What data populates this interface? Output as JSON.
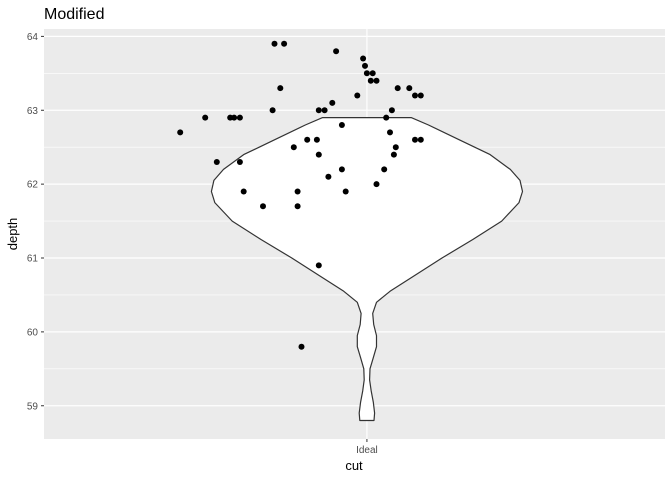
{
  "chart_data": {
    "type": "scatter",
    "title": "Modified",
    "xlabel": "cut",
    "ylabel": "depth",
    "categories": [
      "Ideal"
    ],
    "ylim": [
      58.55,
      64.1
    ],
    "y_ticks": [
      59,
      60,
      61,
      62,
      63,
      64
    ],
    "y_tick_labels": [
      "59",
      "60",
      "61",
      "62",
      "63",
      "64"
    ],
    "grid": true,
    "legend": "none",
    "violin": {
      "category": "Ideal",
      "y_min": 58.8,
      "y_max": 62.9,
      "half_width_profile": [
        {
          "y": 58.8,
          "w": 0.037
        },
        {
          "y": 58.9,
          "w": 0.04
        },
        {
          "y": 59.05,
          "w": 0.033
        },
        {
          "y": 59.2,
          "w": 0.022
        },
        {
          "y": 59.35,
          "w": 0.014
        },
        {
          "y": 59.5,
          "w": 0.016
        },
        {
          "y": 59.65,
          "w": 0.033
        },
        {
          "y": 59.8,
          "w": 0.05
        },
        {
          "y": 59.95,
          "w": 0.05
        },
        {
          "y": 60.1,
          "w": 0.035
        },
        {
          "y": 60.25,
          "w": 0.03
        },
        {
          "y": 60.4,
          "w": 0.05
        },
        {
          "y": 60.55,
          "w": 0.12
        },
        {
          "y": 60.75,
          "w": 0.24
        },
        {
          "y": 61.0,
          "w": 0.39
        },
        {
          "y": 61.25,
          "w": 0.55
        },
        {
          "y": 61.5,
          "w": 0.7
        },
        {
          "y": 61.75,
          "w": 0.79
        },
        {
          "y": 61.9,
          "w": 0.808
        },
        {
          "y": 62.05,
          "w": 0.795
        },
        {
          "y": 62.2,
          "w": 0.745
        },
        {
          "y": 62.4,
          "w": 0.64
        },
        {
          "y": 62.6,
          "w": 0.48
        },
        {
          "y": 62.8,
          "w": 0.32
        },
        {
          "y": 62.9,
          "w": 0.23
        }
      ]
    },
    "points": [
      {
        "x": -0.97,
        "y": 62.7
      },
      {
        "x": -0.84,
        "y": 62.9
      },
      {
        "x": -0.78,
        "y": 62.3
      },
      {
        "x": -0.71,
        "y": 62.9
      },
      {
        "x": -0.69,
        "y": 62.9
      },
      {
        "x": -0.66,
        "y": 62.9
      },
      {
        "x": -0.66,
        "y": 62.3
      },
      {
        "x": -0.64,
        "y": 61.9
      },
      {
        "x": -0.54,
        "y": 61.7
      },
      {
        "x": -0.49,
        "y": 63.0
      },
      {
        "x": -0.48,
        "y": 63.9
      },
      {
        "x": -0.45,
        "y": 63.3
      },
      {
        "x": -0.43,
        "y": 63.9
      },
      {
        "x": -0.38,
        "y": 62.5
      },
      {
        "x": -0.36,
        "y": 61.9
      },
      {
        "x": -0.36,
        "y": 61.7
      },
      {
        "x": -0.34,
        "y": 59.8
      },
      {
        "x": -0.31,
        "y": 62.6
      },
      {
        "x": -0.26,
        "y": 62.6
      },
      {
        "x": -0.25,
        "y": 63.0
      },
      {
        "x": -0.25,
        "y": 62.4
      },
      {
        "x": -0.25,
        "y": 60.9
      },
      {
        "x": -0.22,
        "y": 63.0
      },
      {
        "x": -0.2,
        "y": 62.1
      },
      {
        "x": -0.18,
        "y": 63.1
      },
      {
        "x": -0.16,
        "y": 63.8
      },
      {
        "x": -0.13,
        "y": 62.8
      },
      {
        "x": -0.13,
        "y": 62.2
      },
      {
        "x": -0.11,
        "y": 61.9
      },
      {
        "x": -0.05,
        "y": 63.2
      },
      {
        "x": -0.02,
        "y": 63.7
      },
      {
        "x": -0.01,
        "y": 63.6
      },
      {
        "x": 0.0,
        "y": 63.5
      },
      {
        "x": 0.02,
        "y": 63.4
      },
      {
        "x": 0.03,
        "y": 63.5
      },
      {
        "x": 0.05,
        "y": 63.4
      },
      {
        "x": 0.05,
        "y": 62.0
      },
      {
        "x": 0.09,
        "y": 62.2
      },
      {
        "x": 0.1,
        "y": 62.9
      },
      {
        "x": 0.12,
        "y": 62.7
      },
      {
        "x": 0.13,
        "y": 63.0
      },
      {
        "x": 0.14,
        "y": 62.4
      },
      {
        "x": 0.15,
        "y": 62.5
      },
      {
        "x": 0.16,
        "y": 63.3
      },
      {
        "x": 0.22,
        "y": 63.3
      },
      {
        "x": 0.25,
        "y": 63.2
      },
      {
        "x": 0.25,
        "y": 62.6
      },
      {
        "x": 0.28,
        "y": 63.2
      },
      {
        "x": 0.28,
        "y": 62.6
      }
    ]
  }
}
